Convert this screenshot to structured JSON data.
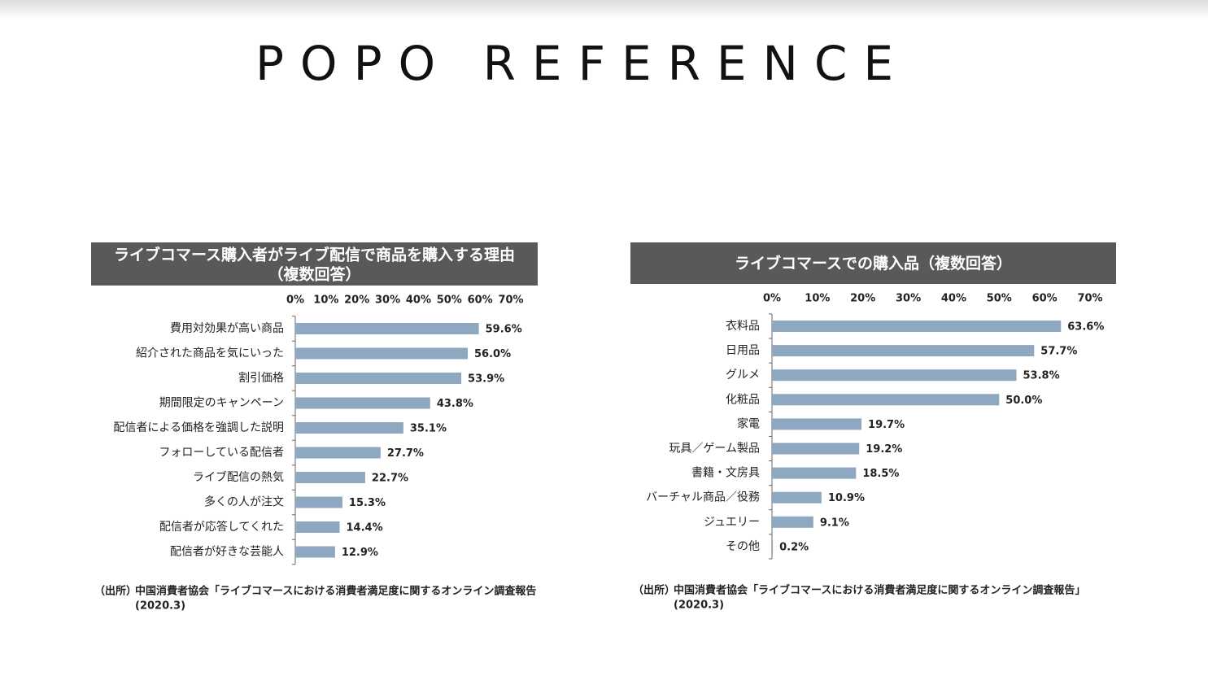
{
  "title": "POPO REFERENCE",
  "chart_data": [
    {
      "type": "bar",
      "orientation": "horizontal",
      "title": "ライブコマース購入者がライブ配信で商品を購入する理由",
      "subtitle": "（複数回答）",
      "categories": [
        "費用対効果が高い商品",
        "紹介された商品を気にいった",
        "割引価格",
        "期間限定のキャンペーン",
        "配信者による価格を強調した説明",
        "フォローしている配信者",
        "ライブ配信の熱気",
        "多くの人が注文",
        "配信者が応答してくれた",
        "配信者が好きな芸能人"
      ],
      "values": [
        59.6,
        56.0,
        53.9,
        43.8,
        35.1,
        27.7,
        22.7,
        15.3,
        14.4,
        12.9
      ],
      "value_labels": [
        "59.6%",
        "56.0%",
        "53.9%",
        "43.8%",
        "35.1%",
        "27.7%",
        "22.7%",
        "15.3%",
        "14.4%",
        "12.9%"
      ],
      "color": "#8ea8c1",
      "xlim": [
        0,
        70
      ],
      "xticks": [
        {
          "value": 0,
          "label": "0%"
        },
        {
          "value": 10,
          "label": "10%"
        },
        {
          "value": 20,
          "label": "20%"
        },
        {
          "value": 30,
          "label": "30%"
        },
        {
          "value": 40,
          "label": "40%"
        },
        {
          "value": 50,
          "label": "50%"
        },
        {
          "value": 60,
          "label": "60%"
        },
        {
          "value": 70,
          "label": "70%"
        }
      ],
      "source_label": "（出所）",
      "source": "中国消費者協会「ライブコマースにおける消費者満足度に関するオンライン調査報告",
      "source_date": "(2020.3)"
    },
    {
      "type": "bar",
      "orientation": "horizontal",
      "title": "ライブコマースでの購入品（複数回答）",
      "categories": [
        "衣料品",
        "日用品",
        "グルメ",
        "化粧品",
        "家電",
        "玩具／ゲーム製品",
        "書籍・文房具",
        "バーチャル商品／役務",
        "ジュエリー",
        "その他"
      ],
      "values": [
        63.6,
        57.7,
        53.8,
        50.0,
        19.7,
        19.2,
        18.5,
        10.9,
        9.1,
        0.2
      ],
      "value_labels": [
        "63.6%",
        "57.7%",
        "53.8%",
        "50.0%",
        "19.7%",
        "19.2%",
        "18.5%",
        "10.9%",
        "9.1%",
        "0.2%"
      ],
      "color": "#8ea8c1",
      "xlim": [
        0,
        70
      ],
      "xticks": [
        {
          "value": 0,
          "label": "0%"
        },
        {
          "value": 10,
          "label": "10%"
        },
        {
          "value": 20,
          "label": "20%"
        },
        {
          "value": 30,
          "label": "30%"
        },
        {
          "value": 40,
          "label": "40%"
        },
        {
          "value": 50,
          "label": "50%"
        },
        {
          "value": 60,
          "label": "60%"
        },
        {
          "value": 70,
          "label": "70%"
        }
      ],
      "source_label": "（出所）",
      "source": "中国消費者協会「ライブコマースにおける消費者満足度に関するオンライン調査報告」",
      "source_date": "(2020.3)"
    }
  ]
}
